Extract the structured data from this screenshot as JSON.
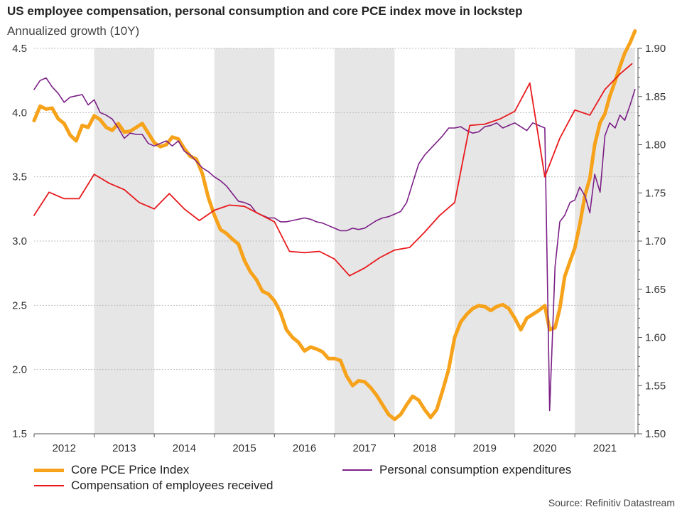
{
  "title": "US employee compensation, personal consumption and core PCE index move in lockstep",
  "subtitle": "Annualized growth (10Y)",
  "source": "Source: Refinitiv Datastream",
  "colors": {
    "core_pce": "#f7a21b",
    "pce": "#7b1f86",
    "comp": "#e8191d",
    "shade": "#e6e6e6",
    "grid": "#bdbdbd"
  },
  "chart_data": {
    "type": "line",
    "title": "US employee compensation, personal consumption and core PCE index move in lockstep",
    "subtitle": "Annualized growth (10Y)",
    "x_range": [
      2011.5,
      2021.55
    ],
    "x_ticks": [
      {
        "label": "2012",
        "year": 2012
      },
      {
        "label": "2013",
        "year": 2013
      },
      {
        "label": "2014",
        "year": 2014
      },
      {
        "label": "2015",
        "year": 2015
      },
      {
        "label": "2016",
        "year": 2016
      },
      {
        "label": "2017",
        "year": 2017
      },
      {
        "label": "2018",
        "year": 2018
      },
      {
        "label": "2019",
        "year": 2019
      },
      {
        "label": "2020",
        "year": 2020
      },
      {
        "label": "2021",
        "year": 2021
      }
    ],
    "shaded_years": [
      2013,
      2015,
      2017,
      2019,
      2021
    ],
    "y_left": {
      "range": [
        1.5,
        4.5
      ],
      "ticks": [
        "1.5",
        "2.0",
        "2.5",
        "3.0",
        "3.5",
        "4.0",
        "4.5"
      ]
    },
    "y_right": {
      "range": [
        1.5,
        1.9
      ],
      "ticks": [
        "1.50",
        "1.55",
        "1.60",
        "1.65",
        "1.70",
        "1.75",
        "1.80",
        "1.85",
        "1.90"
      ]
    },
    "series": [
      {
        "name": "Compensation of employees received",
        "axis": "left",
        "x": [
          2011.5,
          2011.75,
          2012.0,
          2012.25,
          2012.5,
          2012.75,
          2013.0,
          2013.25,
          2013.5,
          2013.75,
          2014.0,
          2014.25,
          2014.5,
          2014.75,
          2015.0,
          2015.25,
          2015.5,
          2015.75,
          2016.0,
          2016.25,
          2016.5,
          2016.75,
          2017.0,
          2017.25,
          2017.5,
          2017.75,
          2018.0,
          2018.25,
          2018.5,
          2018.75,
          2019.0,
          2019.25,
          2019.5,
          2019.75,
          2020.0,
          2020.25,
          2020.5,
          2020.75,
          2021.0,
          2021.25,
          2021.45
        ],
        "values": [
          3.2,
          3.38,
          3.33,
          3.33,
          3.52,
          3.45,
          3.4,
          3.3,
          3.25,
          3.37,
          3.25,
          3.16,
          3.24,
          3.28,
          3.27,
          3.21,
          3.15,
          2.92,
          2.91,
          2.92,
          2.86,
          2.73,
          2.79,
          2.87,
          2.93,
          2.95,
          3.07,
          3.2,
          3.3,
          3.9,
          3.91,
          3.95,
          4.01,
          4.23,
          3.5,
          3.8,
          4.02,
          3.98,
          4.18,
          4.3,
          4.38
        ]
      },
      {
        "name": "Personal consumption expenditures",
        "axis": "left",
        "x": [
          2011.5,
          2011.6,
          2011.7,
          2011.8,
          2011.9,
          2012.0,
          2012.1,
          2012.2,
          2012.3,
          2012.4,
          2012.5,
          2012.6,
          2012.7,
          2012.8,
          2012.9,
          2013.0,
          2013.1,
          2013.2,
          2013.3,
          2013.4,
          2013.5,
          2013.6,
          2013.7,
          2013.8,
          2013.9,
          2014.0,
          2014.1,
          2014.2,
          2014.3,
          2014.4,
          2014.5,
          2014.6,
          2014.7,
          2014.8,
          2014.9,
          2015.0,
          2015.1,
          2015.2,
          2015.3,
          2015.4,
          2015.5,
          2015.6,
          2015.7,
          2015.8,
          2015.9,
          2016.0,
          2016.1,
          2016.2,
          2016.3,
          2016.4,
          2016.5,
          2016.6,
          2016.7,
          2016.8,
          2016.9,
          2017.0,
          2017.1,
          2017.2,
          2017.3,
          2017.4,
          2017.5,
          2017.6,
          2017.7,
          2017.8,
          2017.9,
          2018.0,
          2018.1,
          2018.2,
          2018.3,
          2018.4,
          2018.5,
          2018.6,
          2018.7,
          2018.8,
          2018.9,
          2019.0,
          2019.1,
          2019.2,
          2019.3,
          2019.4,
          2019.5,
          2019.6,
          2019.7,
          2019.8,
          2019.9,
          2020.0,
          2020.08,
          2020.17,
          2020.25,
          2020.33,
          2020.42,
          2020.5,
          2020.58,
          2020.67,
          2020.75,
          2020.83,
          2020.92,
          2021.0,
          2021.08,
          2021.17,
          2021.25,
          2021.33,
          2021.42,
          2021.5
        ],
        "values": [
          4.18,
          4.25,
          4.27,
          4.2,
          4.15,
          4.08,
          4.12,
          4.13,
          4.14,
          4.06,
          4.1,
          4.0,
          3.98,
          3.95,
          3.88,
          3.8,
          3.84,
          3.83,
          3.83,
          3.76,
          3.74,
          3.76,
          3.78,
          3.74,
          3.78,
          3.7,
          3.67,
          3.62,
          3.57,
          3.54,
          3.5,
          3.47,
          3.43,
          3.37,
          3.31,
          3.3,
          3.28,
          3.22,
          3.2,
          3.18,
          3.18,
          3.15,
          3.15,
          3.16,
          3.17,
          3.18,
          3.17,
          3.15,
          3.14,
          3.12,
          3.1,
          3.08,
          3.08,
          3.1,
          3.09,
          3.1,
          3.13,
          3.16,
          3.18,
          3.19,
          3.21,
          3.23,
          3.3,
          3.45,
          3.6,
          3.67,
          3.72,
          3.77,
          3.82,
          3.88,
          3.88,
          3.89,
          3.86,
          3.84,
          3.85,
          3.89,
          3.9,
          3.92,
          3.88,
          3.9,
          3.92,
          3.89,
          3.86,
          3.92,
          3.9,
          3.88,
          1.68,
          2.8,
          3.15,
          3.2,
          3.3,
          3.32,
          3.42,
          3.35,
          3.22,
          3.52,
          3.38,
          3.82,
          3.92,
          3.88,
          3.98,
          3.94,
          4.06,
          4.18
        ]
      },
      {
        "name": "Core PCE Price Index",
        "axis": "right",
        "x": [
          2011.5,
          2011.6,
          2011.7,
          2011.8,
          2011.9,
          2012.0,
          2012.1,
          2012.2,
          2012.3,
          2012.4,
          2012.5,
          2012.6,
          2012.7,
          2012.8,
          2012.9,
          2013.0,
          2013.1,
          2013.2,
          2013.3,
          2013.4,
          2013.5,
          2013.6,
          2013.7,
          2013.8,
          2013.9,
          2014.0,
          2014.1,
          2014.2,
          2014.3,
          2014.4,
          2014.5,
          2014.6,
          2014.7,
          2014.8,
          2014.9,
          2015.0,
          2015.1,
          2015.2,
          2015.3,
          2015.4,
          2015.5,
          2015.6,
          2015.7,
          2015.8,
          2015.9,
          2016.0,
          2016.1,
          2016.2,
          2016.3,
          2016.4,
          2016.5,
          2016.6,
          2016.7,
          2016.8,
          2016.9,
          2017.0,
          2017.1,
          2017.2,
          2017.3,
          2017.4,
          2017.5,
          2017.6,
          2017.7,
          2017.8,
          2017.9,
          2018.0,
          2018.1,
          2018.2,
          2018.3,
          2018.4,
          2018.5,
          2018.6,
          2018.7,
          2018.8,
          2018.9,
          2019.0,
          2019.1,
          2019.2,
          2019.3,
          2019.4,
          2019.5,
          2019.6,
          2019.7,
          2019.8,
          2019.9,
          2020.0,
          2020.08,
          2020.17,
          2020.25,
          2020.33,
          2020.42,
          2020.5,
          2020.58,
          2020.67,
          2020.75,
          2020.83,
          2020.92,
          2021.0,
          2021.08,
          2021.17,
          2021.25,
          2021.33,
          2021.42,
          2021.5
        ],
        "values": [
          1.825,
          1.84,
          1.837,
          1.838,
          1.827,
          1.822,
          1.81,
          1.804,
          1.82,
          1.818,
          1.83,
          1.826,
          1.818,
          1.815,
          1.822,
          1.813,
          1.814,
          1.818,
          1.822,
          1.812,
          1.802,
          1.798,
          1.8,
          1.808,
          1.806,
          1.796,
          1.788,
          1.785,
          1.77,
          1.745,
          1.727,
          1.712,
          1.708,
          1.702,
          1.697,
          1.68,
          1.668,
          1.66,
          1.648,
          1.645,
          1.638,
          1.626,
          1.608,
          1.6,
          1.595,
          1.586,
          1.59,
          1.588,
          1.585,
          1.578,
          1.578,
          1.576,
          1.56,
          1.55,
          1.555,
          1.554,
          1.548,
          1.54,
          1.53,
          1.52,
          1.515,
          1.52,
          1.53,
          1.539,
          1.535,
          1.525,
          1.517,
          1.525,
          1.545,
          1.567,
          1.6,
          1.616,
          1.624,
          1.63,
          1.633,
          1.632,
          1.628,
          1.632,
          1.634,
          1.63,
          1.62,
          1.608,
          1.62,
          1.624,
          1.628,
          1.633,
          1.608,
          1.61,
          1.63,
          1.663,
          1.679,
          1.693,
          1.717,
          1.748,
          1.765,
          1.8,
          1.823,
          1.832,
          1.85,
          1.866,
          1.881,
          1.895,
          1.906,
          1.918
        ]
      }
    ],
    "legend": [
      {
        "label": "Core PCE Price Index",
        "color": "#f7a21b"
      },
      {
        "label": "Personal consumption expenditures",
        "color": "#7b1f86"
      },
      {
        "label": "Compensation of employees received",
        "color": "#e8191d"
      }
    ],
    "legend_position": "bottom"
  }
}
